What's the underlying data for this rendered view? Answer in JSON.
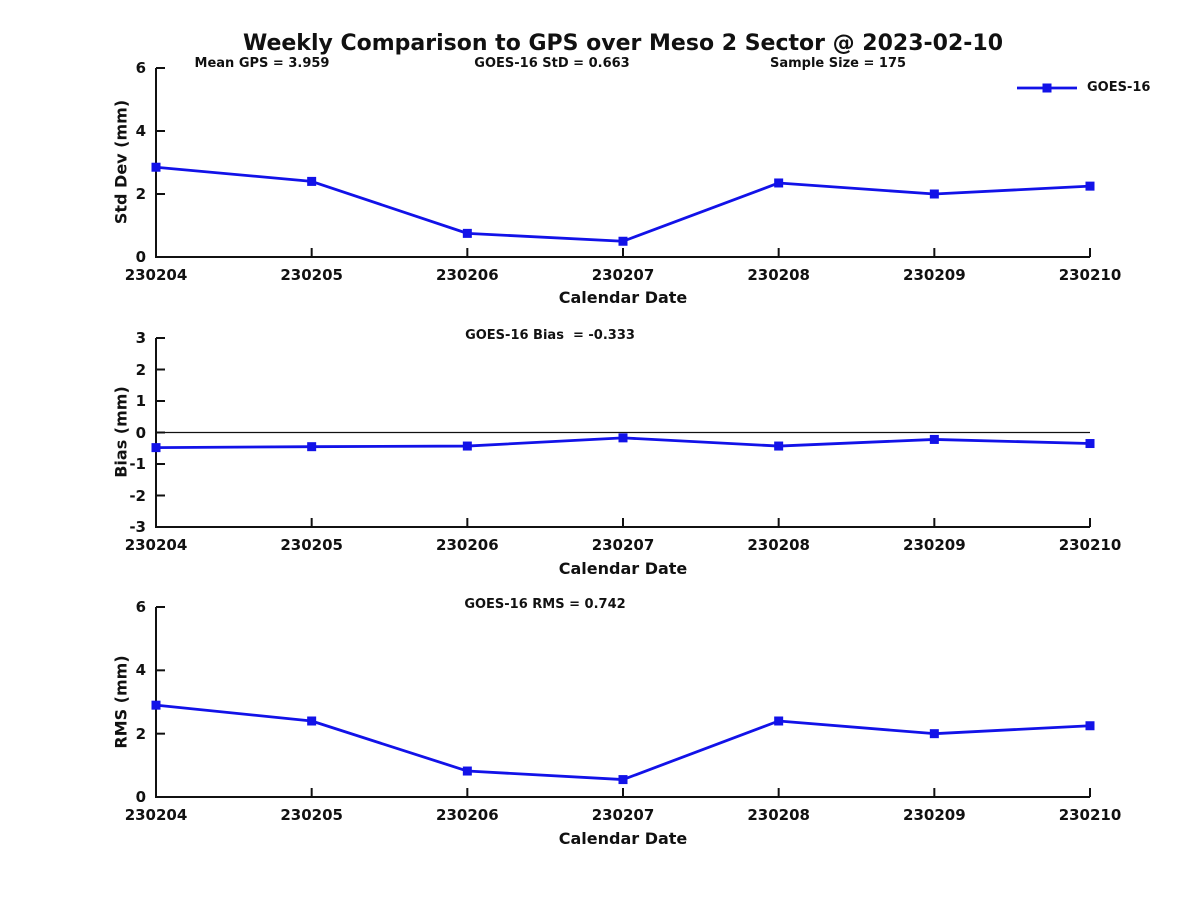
{
  "title": "Weekly Comparison to GPS over Meso 2 Sector @ 2023-02-10",
  "colors": {
    "series_blue": "#1212E8",
    "axis_and_text": "#111111",
    "background": "#ffffff"
  },
  "chart_data": [
    {
      "type": "line",
      "panel": "top",
      "ylabel": "Std Dev (mm)",
      "xlabel": "Calendar Date",
      "annotations": [
        "Mean GPS = 3.959",
        "GOES-16 StD = 0.663",
        "Sample Size = 175"
      ],
      "categories": [
        "230204",
        "230205",
        "230206",
        "230207",
        "230208",
        "230209",
        "230210"
      ],
      "series": [
        {
          "name": "GOES-16",
          "color": "#1212E8",
          "marker": "square",
          "values": [
            2.85,
            2.4,
            0.75,
            0.5,
            2.35,
            2.0,
            2.25
          ]
        }
      ],
      "ylim": [
        0,
        6
      ],
      "yticks": [
        0,
        2,
        4,
        6
      ],
      "grid": false,
      "legend_position": "top-right-outside"
    },
    {
      "type": "line",
      "panel": "middle",
      "ylabel": "Bias (mm)",
      "xlabel": "Calendar Date",
      "annotations": [
        "GOES-16 Bias  = -0.333"
      ],
      "categories": [
        "230204",
        "230205",
        "230206",
        "230207",
        "230208",
        "230209",
        "230210"
      ],
      "series": [
        {
          "name": "GOES-16",
          "color": "#1212E8",
          "marker": "square",
          "values": [
            -0.48,
            -0.45,
            -0.43,
            -0.17,
            -0.43,
            -0.22,
            -0.35
          ]
        }
      ],
      "ylim": [
        -3,
        3
      ],
      "yticks": [
        -3,
        -2,
        -1,
        0,
        1,
        2,
        3
      ],
      "zero_line": true,
      "grid": false
    },
    {
      "type": "line",
      "panel": "bottom",
      "ylabel": "RMS (mm)",
      "xlabel": "Calendar Date",
      "annotations": [
        "GOES-16 RMS = 0.742"
      ],
      "categories": [
        "230204",
        "230205",
        "230206",
        "230207",
        "230208",
        "230209",
        "230210"
      ],
      "series": [
        {
          "name": "GOES-16",
          "color": "#1212E8",
          "marker": "square",
          "values": [
            2.9,
            2.4,
            0.82,
            0.55,
            2.4,
            2.0,
            2.25
          ]
        }
      ],
      "ylim": [
        0,
        6
      ],
      "yticks": [
        0,
        2,
        4,
        6
      ],
      "grid": false
    }
  ]
}
